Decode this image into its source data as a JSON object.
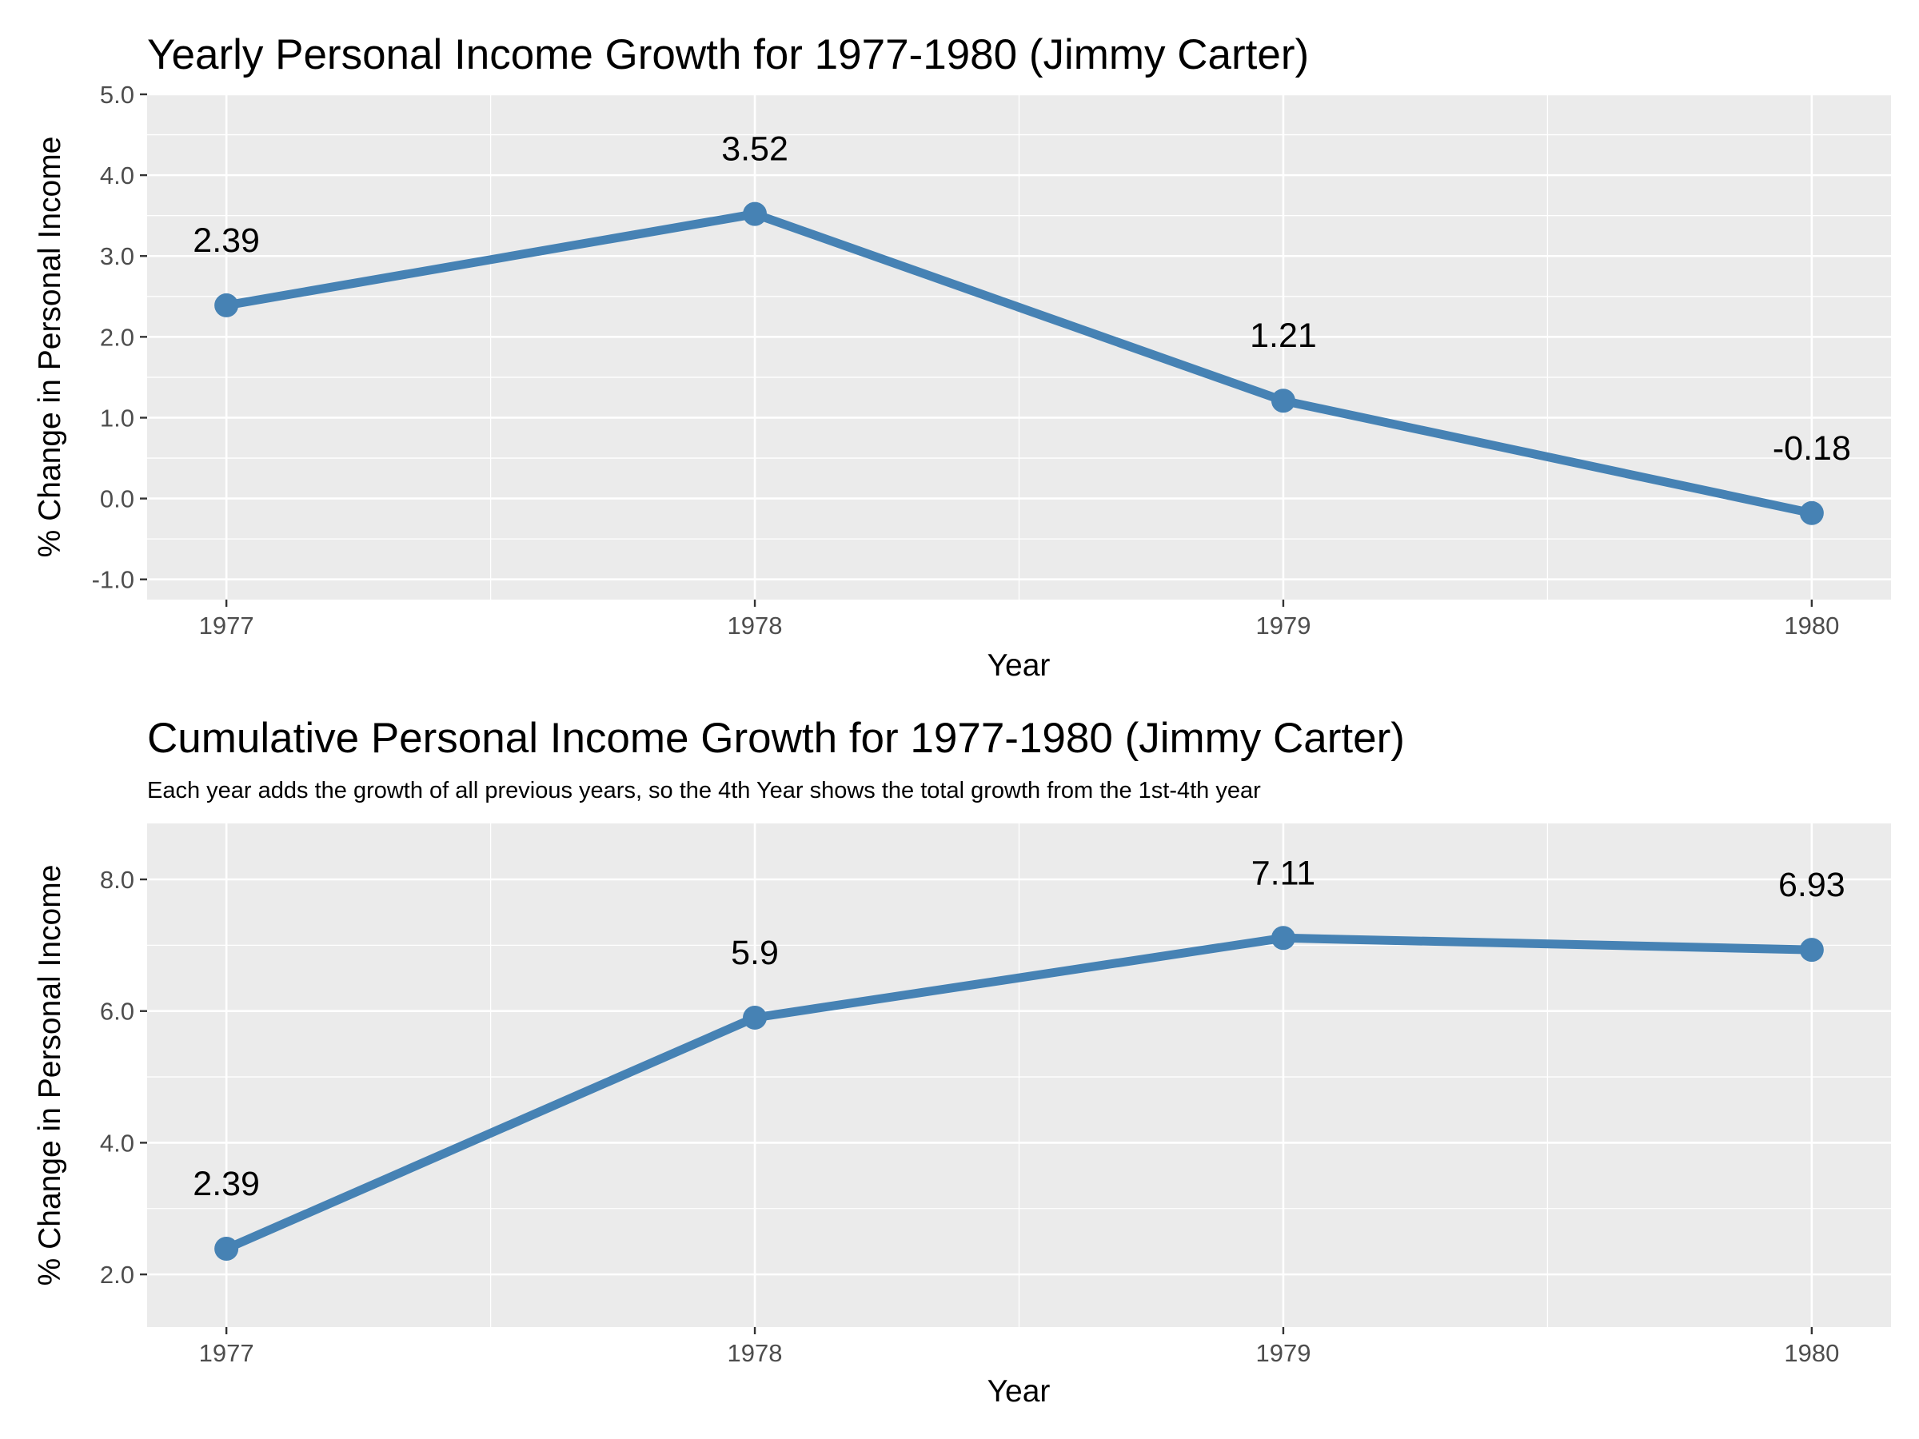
{
  "chart_data": [
    {
      "type": "line",
      "title": "Yearly Personal Income Growth for 1977-1980 (Jimmy Carter)",
      "subtitle": "",
      "xlabel": "Year",
      "ylabel": "% Change in Personal Income",
      "categories": [
        "1977",
        "1978",
        "1979",
        "1980"
      ],
      "values": [
        2.39,
        3.52,
        1.21,
        -0.18
      ],
      "data_labels": [
        "2.39",
        "3.52",
        "1.21",
        "-0.18"
      ],
      "ylim": [
        -1.25,
        5.0
      ],
      "yticks": [
        -1.0,
        0.0,
        1.0,
        2.0,
        3.0,
        4.0,
        5.0
      ],
      "ytick_labels": [
        "-1.0",
        "0.0",
        "1.0",
        "2.0",
        "3.0",
        "4.0",
        "5.0"
      ],
      "grid": true,
      "line_color": "#4682b4",
      "panel_color": "#ebebeb"
    },
    {
      "type": "line",
      "title": "Cumulative Personal Income Growth for 1977-1980 (Jimmy Carter)",
      "subtitle": "Each year adds the growth of all previous years, so the 4th Year shows the total growth from the 1st-4th year",
      "xlabel": "Year",
      "ylabel": "% Change in Personal Income",
      "categories": [
        "1977",
        "1978",
        "1979",
        "1980"
      ],
      "values": [
        2.39,
        5.9,
        7.11,
        6.93
      ],
      "data_labels": [
        "2.39",
        "5.9",
        "7.11",
        "6.93"
      ],
      "ylim": [
        1.2,
        8.85
      ],
      "yticks": [
        2.0,
        4.0,
        6.0,
        8.0
      ],
      "ytick_labels": [
        "2.0",
        "4.0",
        "6.0",
        "8.0"
      ],
      "grid": true,
      "line_color": "#4682b4",
      "panel_color": "#ebebeb"
    }
  ]
}
